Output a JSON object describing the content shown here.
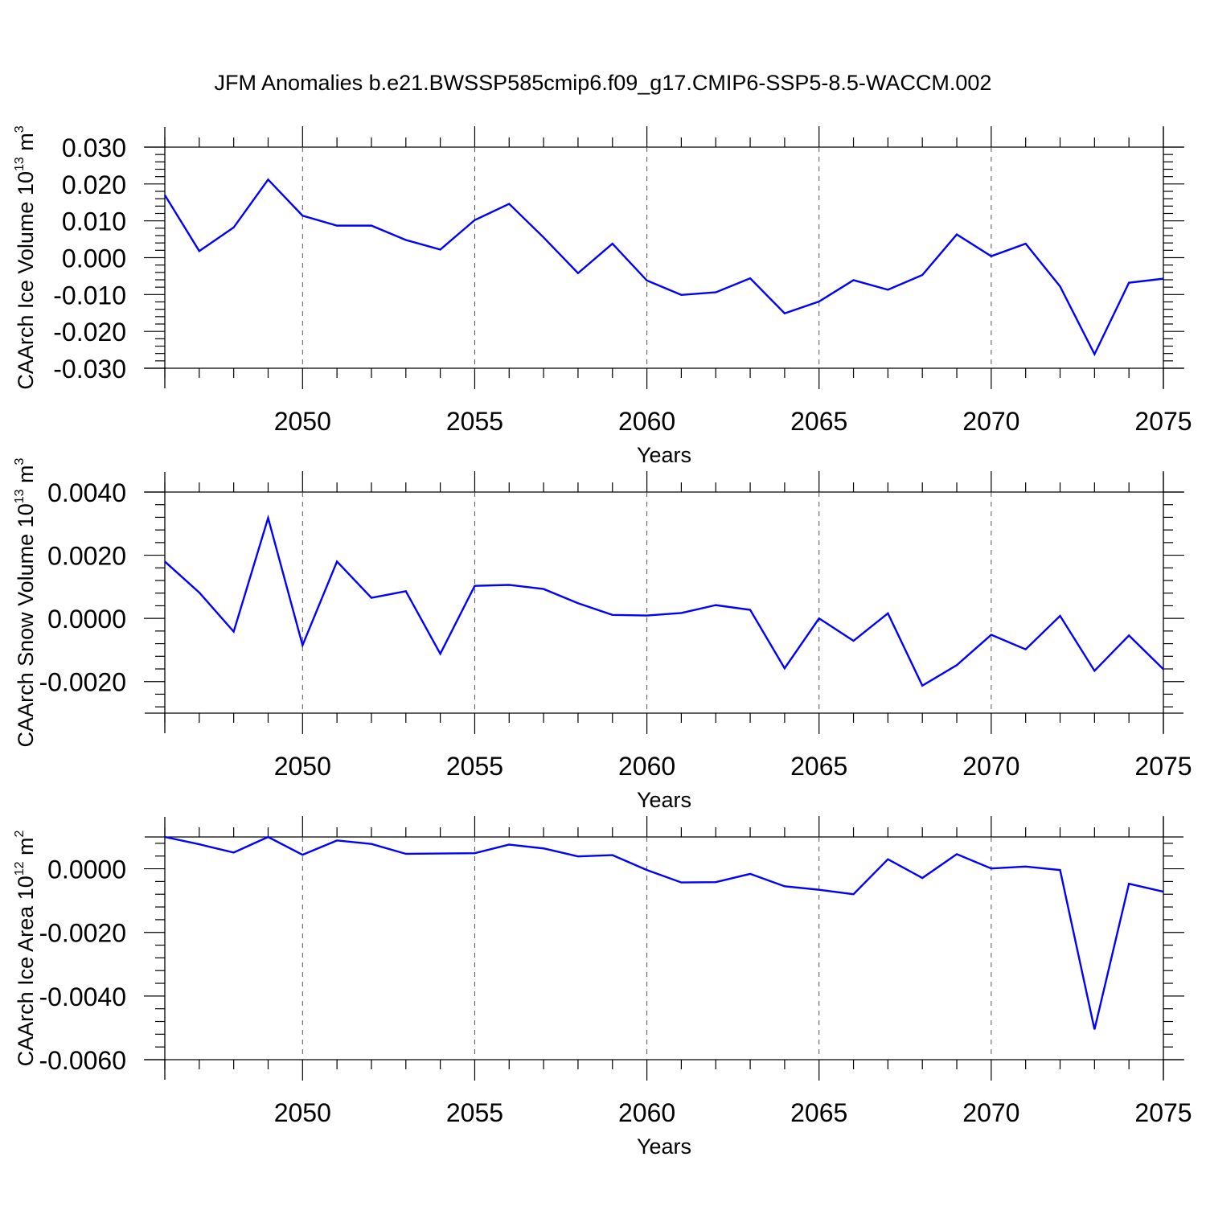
{
  "figure": {
    "title": "JFM Anomalies b.e21.BWSSP585cmip6.f09_g17.CMIP6-SSP5-8.5-WACCM.002",
    "line_color": "#0000ff"
  },
  "chart_data": [
    {
      "type": "line",
      "name": "ice-volume",
      "ylabel_main": "CAArch Ice Volume 10",
      "ylabel_exp": "13",
      "ylabel_unit": " m",
      "ylabel_unit_exp": "3",
      "xlabel": "Years",
      "xlim": [
        2046,
        2075
      ],
      "ylim": [
        -0.03,
        0.03
      ],
      "xticks": [
        2050,
        2055,
        2060,
        2065,
        2070,
        2075
      ],
      "xtick_labels": [
        "2050",
        "2055",
        "2060",
        "2065",
        "2070",
        "2075"
      ],
      "yticks": [
        -0.03,
        -0.02,
        -0.01,
        0.0,
        0.01,
        0.02,
        0.03
      ],
      "ytick_labels": [
        "-0.030",
        "-0.020",
        "-0.010",
        "0.000",
        "0.010",
        "0.020",
        "0.030"
      ],
      "x": [
        2046,
        2047,
        2048,
        2049,
        2050,
        2051,
        2052,
        2053,
        2054,
        2055,
        2056,
        2057,
        2058,
        2059,
        2060,
        2061,
        2062,
        2063,
        2064,
        2065,
        2066,
        2067,
        2068,
        2069,
        2070,
        2071,
        2072,
        2073,
        2074,
        2075
      ],
      "values": [
        0.017,
        0.0018,
        0.0082,
        0.0212,
        0.0114,
        0.0087,
        0.0087,
        0.0048,
        0.0022,
        0.0102,
        0.0146,
        0.0055,
        -0.0042,
        0.0038,
        -0.0062,
        -0.0101,
        -0.0094,
        -0.0056,
        -0.0151,
        -0.0119,
        -0.0061,
        -0.0087,
        -0.0047,
        0.0063,
        0.0004,
        0.0038,
        -0.0078,
        -0.0262,
        -0.0068,
        -0.0057
      ]
    },
    {
      "type": "line",
      "name": "snow-volume",
      "ylabel_main": "CAArch Snow Volume 10",
      "ylabel_exp": "13",
      "ylabel_unit": " m",
      "ylabel_unit_exp": "3",
      "xlabel": "Years",
      "xlim": [
        2046,
        2075
      ],
      "ylim": [
        -0.003,
        0.004
      ],
      "xticks": [
        2050,
        2055,
        2060,
        2065,
        2070,
        2075
      ],
      "xtick_labels": [
        "2050",
        "2055",
        "2060",
        "2065",
        "2070",
        "2075"
      ],
      "yticks": [
        -0.002,
        0.0,
        0.002,
        0.004
      ],
      "ytick_labels": [
        "-0.0020",
        "0.0000",
        "0.0020",
        "0.0040"
      ],
      "x": [
        2046,
        2047,
        2048,
        2049,
        2050,
        2051,
        2052,
        2053,
        2054,
        2055,
        2056,
        2057,
        2058,
        2059,
        2060,
        2061,
        2062,
        2063,
        2064,
        2065,
        2066,
        2067,
        2068,
        2069,
        2070,
        2071,
        2072,
        2073,
        2074,
        2075
      ],
      "values": [
        0.0018,
        0.00082,
        -0.00042,
        0.00318,
        -0.00085,
        0.0018,
        0.00065,
        0.00086,
        -0.00112,
        0.00103,
        0.00106,
        0.00093,
        0.00048,
        0.00011,
        9e-05,
        0.00017,
        0.00042,
        0.00027,
        -0.00158,
        0.0,
        -0.00071,
        0.00016,
        -0.00213,
        -0.00148,
        -0.00052,
        -0.00098,
        8e-05,
        -0.00166,
        -0.00054,
        -0.00161
      ]
    },
    {
      "type": "line",
      "name": "ice-area",
      "ylabel_main": "CAArch Ice Area 10",
      "ylabel_exp": "12",
      "ylabel_unit": " m",
      "ylabel_unit_exp": "2",
      "xlabel": "Years",
      "xlim": [
        2046,
        2075
      ],
      "ylim": [
        -0.006,
        0.001
      ],
      "xticks": [
        2050,
        2055,
        2060,
        2065,
        2070,
        2075
      ],
      "xtick_labels": [
        "2050",
        "2055",
        "2060",
        "2065",
        "2070",
        "2075"
      ],
      "yticks": [
        -0.006,
        -0.004,
        -0.002,
        0.0
      ],
      "ytick_labels": [
        "-0.0060",
        "-0.0040",
        "-0.0020",
        "0.0000"
      ],
      "x": [
        2046,
        2047,
        2048,
        2049,
        2050,
        2051,
        2052,
        2053,
        2054,
        2055,
        2056,
        2057,
        2058,
        2059,
        2060,
        2061,
        2062,
        2063,
        2064,
        2065,
        2066,
        2067,
        2068,
        2069,
        2070,
        2071,
        2072,
        2073,
        2074,
        2075
      ],
      "values": [
        0.001,
        0.00077,
        0.00051,
        0.001,
        0.00044,
        0.00089,
        0.00078,
        0.00047,
        0.00048,
        0.00049,
        0.00076,
        0.00064,
        0.00039,
        0.00043,
        -4e-05,
        -0.00043,
        -0.00042,
        -0.00016,
        -0.00055,
        -0.00066,
        -0.0008,
        0.0003,
        -0.00029,
        0.00046,
        1e-05,
        7e-05,
        -4e-05,
        -0.00505,
        -0.00047,
        -0.00072
      ]
    }
  ]
}
